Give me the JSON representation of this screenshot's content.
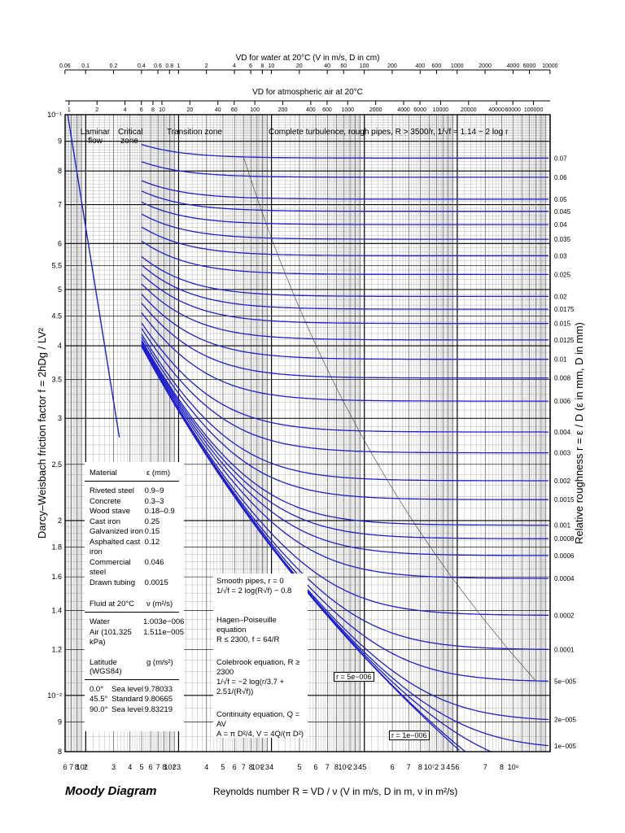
{
  "title": "Moody Diagram",
  "xlabel": "Reynolds number  R = VD / ν  (V in m/s, D in m, ν in m²/s)",
  "ylabel": "Darcy–Weisbach friction factor  f = 2hDg / LV²",
  "y2label": "Relative roughness  r = ε / D  (ε in mm, D in mm)",
  "top_axis1_label": "VD for water at 20°C (V in m/s, D in cm)",
  "top_axis2_label": "VD for atmospheric air at 20°C",
  "top_axis1_ticks": [
    "0.06",
    "0.1",
    "0.2",
    "0.4",
    "0.6",
    "0.8",
    "1",
    "2",
    "4",
    "6",
    "8",
    "10",
    "20",
    "40",
    "60",
    "100",
    "200",
    "400",
    "600",
    "1000",
    "2000",
    "4000",
    "6000",
    "10000"
  ],
  "top_axis2_ticks": [
    "1",
    "2",
    "4",
    "6",
    "8",
    "10",
    "20",
    "40",
    "60",
    "100",
    "200",
    "400",
    "600",
    "1000",
    "2000",
    "4000",
    "6000",
    "10000",
    "20000",
    "40000",
    "60000",
    "100000"
  ],
  "zones": {
    "laminar": "Laminar flow",
    "critical": "Critical zone",
    "transition": "Transition zone",
    "turbulence": "Complete turbulence, rough pipes, R > 3500/r,  1/√f = 1.14 − 2 log r"
  },
  "materials": {
    "header": [
      "Material",
      "ε (mm)"
    ],
    "rows": [
      [
        "Riveted steel",
        "0.9–9"
      ],
      [
        "Concrete",
        "0.3–3"
      ],
      [
        "Wood stave",
        "0.18–0.9"
      ],
      [
        "Cast iron",
        "0.25"
      ],
      [
        "Galvanized iron",
        "0.15"
      ],
      [
        "Asphalted cast iron",
        "0.12"
      ],
      [
        "Commercial steel",
        "0.046"
      ],
      [
        "Drawn tubing",
        "0.0015"
      ]
    ]
  },
  "fluids": {
    "header": [
      "Fluid at 20°C",
      "ν (m²/s)"
    ],
    "rows": [
      [
        "Water",
        "1.003e−006"
      ],
      [
        "Air (101.325 kPa)",
        "1.511e−005"
      ]
    ]
  },
  "latitude": {
    "header": [
      "Latitude (WGS84)",
      "g (m/s²)"
    ],
    "rows": [
      [
        "0.0°",
        "Sea level",
        "9.78033"
      ],
      [
        "45.5°",
        "Standard",
        "9.80665"
      ],
      [
        "90.0°",
        "Sea level",
        "9.83219"
      ]
    ]
  },
  "equations": {
    "smooth": [
      "Smooth pipes, r = 0",
      "1/√f = 2 log(R√f) − 0.8"
    ],
    "hagen": [
      "Hagen–Poiseuille equation",
      "R ≤ 2300,  f = 64/R"
    ],
    "colebrook": [
      "Colebrook equation, R ≥ 2300",
      "1/√f = −2 log(r/3.7 + 2.51/(R√f))"
    ],
    "continuity": [
      "Continuity equation, Q = AV",
      "A = π D²/4,  V = 4Q/(π D²)"
    ]
  },
  "curve_annotations": [
    "r = 5e−006",
    "r = 1e−006"
  ],
  "colors": {
    "curve": "#1f1fd0",
    "grid_major": "#000000",
    "grid_minor": "#555555"
  },
  "chart_data": {
    "type": "line",
    "title": "Moody Diagram",
    "xlabel": "Reynolds number R = VD/ν",
    "ylabel": "Darcy–Weisbach friction factor f",
    "xscale": "log",
    "yscale": "log",
    "xlim": [
      600,
      100000000
    ],
    "ylim": [
      0.008,
      0.1
    ],
    "x_ticks": [
      "6",
      "7",
      "8",
      "10³",
      "2",
      "3",
      "4",
      "5",
      "6",
      "7",
      "8",
      "10⁴",
      "2",
      "3",
      "4",
      "5",
      "6",
      "7",
      "8",
      "10⁵",
      "2",
      "3",
      "4",
      "5",
      "6",
      "7",
      "8",
      "10⁶",
      "2",
      "3",
      "4",
      "5",
      "6",
      "7",
      "8",
      "10⁷",
      "2",
      "3",
      "4",
      "5",
      "6",
      "7",
      "8",
      "10⁸"
    ],
    "y_ticks": [
      "10⁻¹",
      "9",
      "8",
      "7",
      "6",
      "5.5",
      "5",
      "4.5",
      "4",
      "3.5",
      "3",
      "2.5",
      "2",
      "1.8",
      "1.6",
      "1.4",
      "1.2",
      "10⁻²",
      "9",
      "8"
    ],
    "laminar": {
      "equation": "f = 64/R",
      "x_range": [
        640,
        2300
      ]
    },
    "relative_roughness": [
      0.07,
      0.06,
      0.05,
      0.045,
      0.04,
      0.035,
      0.03,
      0.025,
      0.02,
      0.0175,
      0.015,
      0.0125,
      0.01,
      0.008,
      0.006,
      0.004,
      0.003,
      0.002,
      0.0015,
      0.001,
      0.0008,
      0.0006,
      0.0004,
      0.0002,
      0.0001,
      5e-05,
      2e-05,
      1e-05,
      5e-06,
      1e-06,
      0
    ],
    "relative_roughness_labels": [
      "0.07",
      "0.06",
      "0.05",
      "0.045",
      "0.04",
      "0.035",
      "0.03",
      "0.025",
      "0.02",
      "0.0175",
      "0.015",
      "0.0125",
      "0.01",
      "0.008",
      "0.006",
      "0.004",
      "0.003",
      "0.002",
      "0.0015",
      "0.001",
      "0.0008",
      "0.0006",
      "0.0004",
      "0.0002",
      "0.0001",
      "5e−005",
      "2e−005",
      "1e−005"
    ],
    "colebrook_equation": "1/√f = −2 log(r/3.7 + 2.51/(R√f))",
    "grid": true
  }
}
